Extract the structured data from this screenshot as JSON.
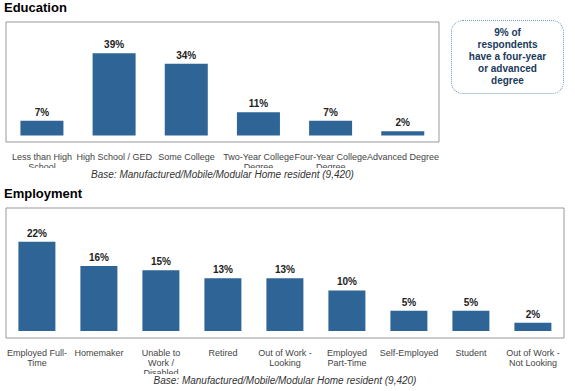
{
  "chart_data": [
    {
      "type": "bar",
      "title": "Education",
      "categories": [
        "Less than High\nSchool",
        "High School / GED",
        "Some College",
        "Two-Year College\nDegree",
        "Four-Year College\nDegree",
        "Advanced Degree"
      ],
      "values": [
        7,
        39,
        34,
        11,
        7,
        2
      ],
      "value_labels": [
        "7%",
        "39%",
        "34%",
        "11%",
        "7%",
        "2%"
      ],
      "data_labels": true,
      "color": "#2E6496",
      "ylim": [
        -3.12,
        53.82
      ],
      "tick_labels": "x",
      "annotations": [
        "Base: Manufactured/Mobile/Modular Home resident (9,420)",
        "9% of\nrespondents\nhave a four-year\nor advanced\ndegree"
      ]
    },
    {
      "type": "bar",
      "title": "Employment",
      "categories": [
        "Employed Full-\nTime",
        "Homemaker",
        "Unable to\nWork /\nDisabled",
        "Retired",
        "Out of Work -\nLooking",
        "Employed\nPart-Time",
        "Self-Employed",
        "Student",
        "Out of Work -\nNot Looking"
      ],
      "values": [
        22,
        16,
        15,
        13,
        13,
        10,
        5,
        5,
        2
      ],
      "value_labels": [
        "22%",
        "16%",
        "15%",
        "13%",
        "13%",
        "10%",
        "5%",
        "5%",
        "2%"
      ],
      "data_labels": true,
      "color": "#2E6496",
      "ylim": [
        -1.76,
        30.36
      ],
      "tick_labels": "x",
      "annotations": [
        "Base: Manufactured/Mobile/Modular Home resident (9,420)"
      ]
    }
  ]
}
